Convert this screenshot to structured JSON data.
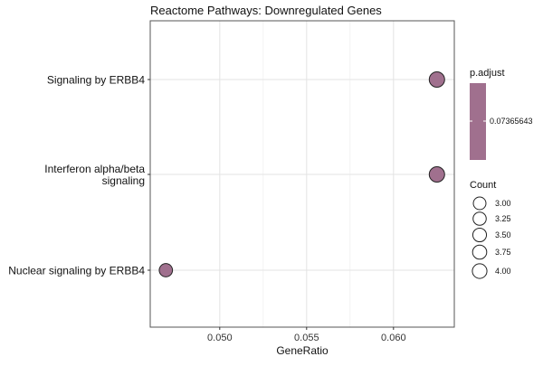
{
  "chart_data": {
    "type": "scatter",
    "title": "Reactome Pathways: Downregulated Genes",
    "xlabel": "GeneRatio",
    "ylabel": "",
    "xlim": [
      0.046,
      0.0635
    ],
    "x_ticks": [
      {
        "value": 0.05,
        "label": "0.050"
      },
      {
        "value": 0.055,
        "label": "0.055"
      },
      {
        "value": 0.06,
        "label": "0.060"
      }
    ],
    "categories": [
      {
        "lines": [
          "Signaling by ERBB4"
        ]
      },
      {
        "lines": [
          "Interferon alpha/beta",
          "signaling"
        ]
      },
      {
        "lines": [
          "Nuclear signaling by ERBB4"
        ]
      }
    ],
    "points": [
      {
        "pathway": "Signaling by ERBB4",
        "gene_ratio": 0.0625,
        "count": 4,
        "p_adjust": 0.07365643
      },
      {
        "pathway": "Interferon alpha/beta signaling",
        "gene_ratio": 0.0625,
        "count": 4,
        "p_adjust": 0.07365643
      },
      {
        "pathway": "Nuclear signaling by ERBB4",
        "gene_ratio": 0.0469,
        "count": 3,
        "p_adjust": 0.07365643
      }
    ],
    "color_legend": {
      "title": "p.adjust",
      "label": "0.07365643",
      "color": "#a0708e"
    },
    "size_legend": {
      "title": "Count",
      "entries": [
        {
          "value": 3.0,
          "label": "3.00"
        },
        {
          "value": 3.25,
          "label": "3.25"
        },
        {
          "value": 3.5,
          "label": "3.50"
        },
        {
          "value": 3.75,
          "label": "3.75"
        },
        {
          "value": 4.0,
          "label": "4.00"
        }
      ]
    },
    "grid": true,
    "point_color": "#a0708e"
  }
}
